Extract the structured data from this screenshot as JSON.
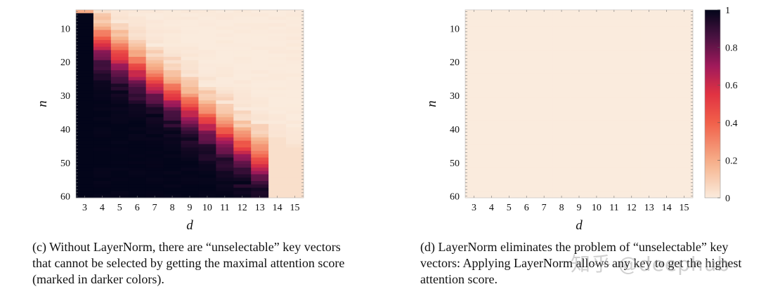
{
  "chart_data": [
    {
      "type": "heatmap",
      "panel": "c",
      "xlabel": "d",
      "ylabel": "n",
      "x": [
        3,
        4,
        5,
        6,
        7,
        8,
        9,
        10,
        11,
        12,
        13,
        14,
        15
      ],
      "x_ticks": [
        "3",
        "4",
        "5",
        "6",
        "7",
        "8",
        "9",
        "10",
        "11",
        "12",
        "13",
        "14",
        "15"
      ],
      "y_ticks": [
        "10",
        "20",
        "30",
        "40",
        "50",
        "60"
      ],
      "ylim": [
        5,
        60
      ],
      "colorbar": false,
      "description": "Attention-selectable heatmap without LayerNorm: values ~1 for small d and large n, with a dark diagonal boundary moving right as n increases",
      "caption": "(c) Without LayerNorm, there are “unselectable” key vectors that cannot be selected by getting the maximal attention score (marked in darker colors)."
    },
    {
      "type": "heatmap",
      "panel": "d",
      "xlabel": "d",
      "ylabel": "n",
      "x": [
        3,
        4,
        5,
        6,
        7,
        8,
        9,
        10,
        11,
        12,
        13,
        14,
        15
      ],
      "x_ticks": [
        "3",
        "4",
        "5",
        "6",
        "7",
        "8",
        "9",
        "10",
        "11",
        "12",
        "13",
        "14",
        "15"
      ],
      "y_ticks": [
        "10",
        "20",
        "30",
        "40",
        "50",
        "60"
      ],
      "ylim": [
        5,
        60
      ],
      "uniform_value": 0,
      "colorbar": true,
      "colorbar_ticks": [
        "1",
        "0.8",
        "0.6",
        "0.4",
        "0.2",
        "0"
      ],
      "caption": "(d) LayerNorm eliminates the problem of “unselectable” key vectors: Applying LayerNorm allows any key to get the highest attention score."
    }
  ],
  "colors": {
    "low": "#faebdd",
    "mid": "#e13342",
    "high": "#03051a"
  },
  "watermark": "知乎 @deephub"
}
